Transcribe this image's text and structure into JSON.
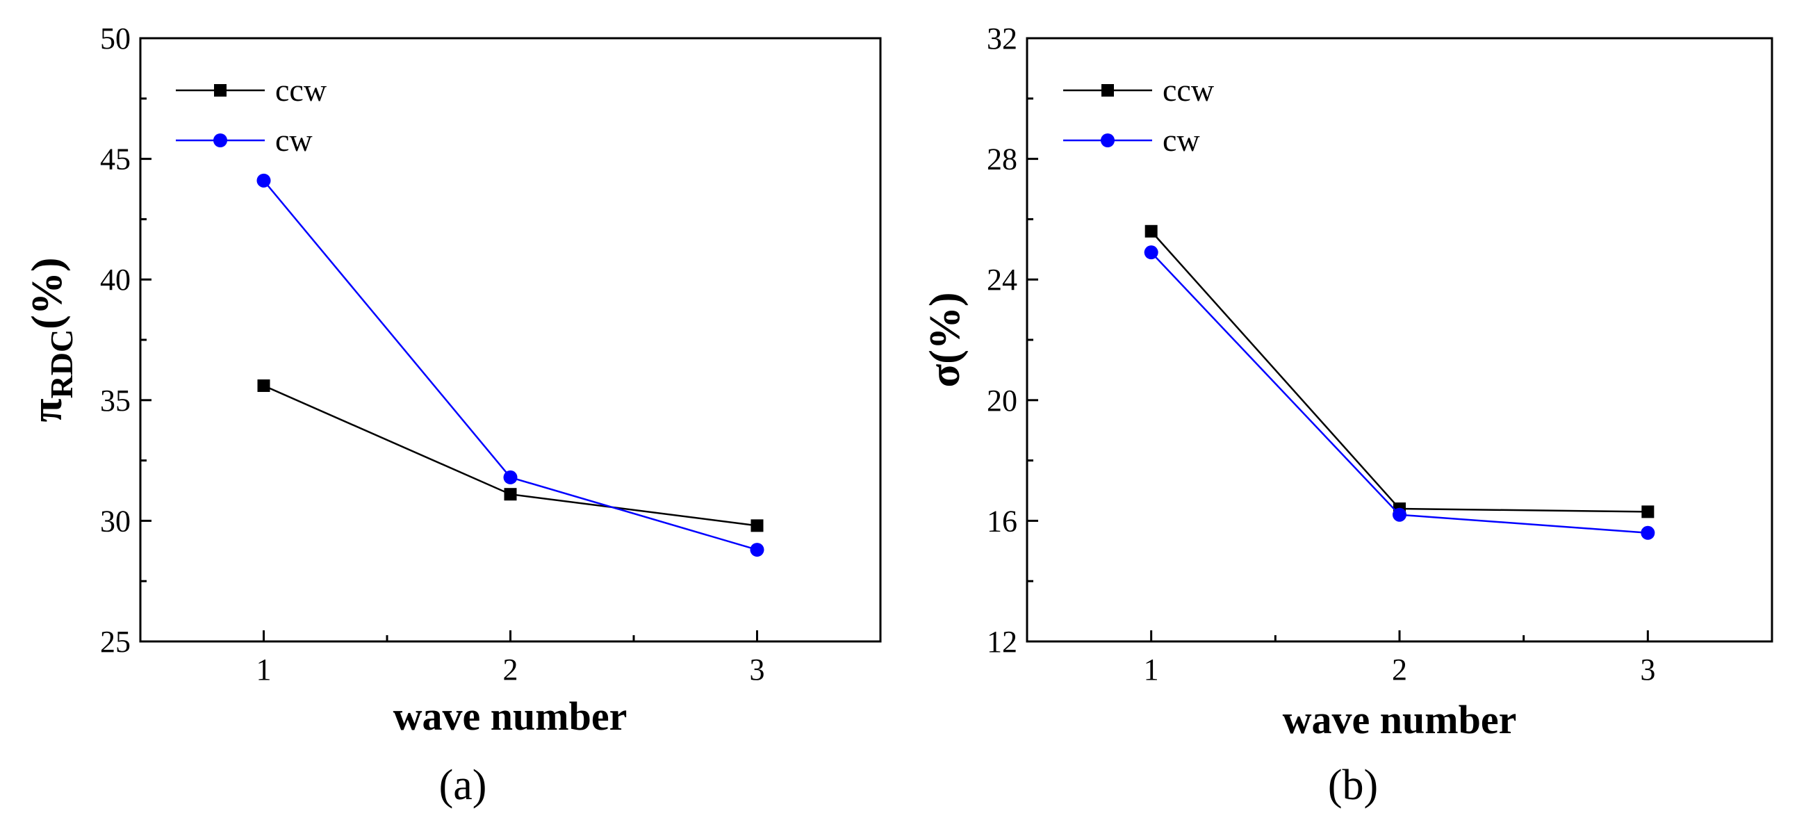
{
  "chart_data": [
    {
      "type": "line",
      "panel_label": "(a)",
      "xlabel": "wave number",
      "ylabel": "π",
      "ylabel_sub": "RDC",
      "ylabel_suffix": "(%)",
      "x": [
        1,
        2,
        3
      ],
      "xlim": [
        0.5,
        3.5
      ],
      "ylim": [
        25,
        50
      ],
      "xticks": [
        1,
        2,
        3
      ],
      "yticks": [
        25,
        30,
        35,
        40,
        45,
        50
      ],
      "legend_position": "top-left",
      "series": [
        {
          "name": "ccw",
          "color": "#000000",
          "marker": "square",
          "values": [
            35.6,
            31.1,
            29.8
          ]
        },
        {
          "name": "cw",
          "color": "#0000ff",
          "marker": "circle",
          "values": [
            44.1,
            31.8,
            28.8
          ]
        }
      ]
    },
    {
      "type": "line",
      "panel_label": "(b)",
      "xlabel": "wave number",
      "ylabel": "σ",
      "ylabel_sub": "",
      "ylabel_suffix": "(%)",
      "x": [
        1,
        2,
        3
      ],
      "xlim": [
        0.5,
        3.5
      ],
      "ylim": [
        12,
        32
      ],
      "xticks": [
        1,
        2,
        3
      ],
      "yticks": [
        12,
        16,
        20,
        24,
        28,
        32
      ],
      "legend_position": "top-left",
      "series": [
        {
          "name": "ccw",
          "color": "#000000",
          "marker": "square",
          "values": [
            25.6,
            16.4,
            16.3
          ]
        },
        {
          "name": "cw",
          "color": "#0000ff",
          "marker": "circle",
          "values": [
            24.9,
            16.2,
            15.6
          ]
        }
      ]
    }
  ]
}
